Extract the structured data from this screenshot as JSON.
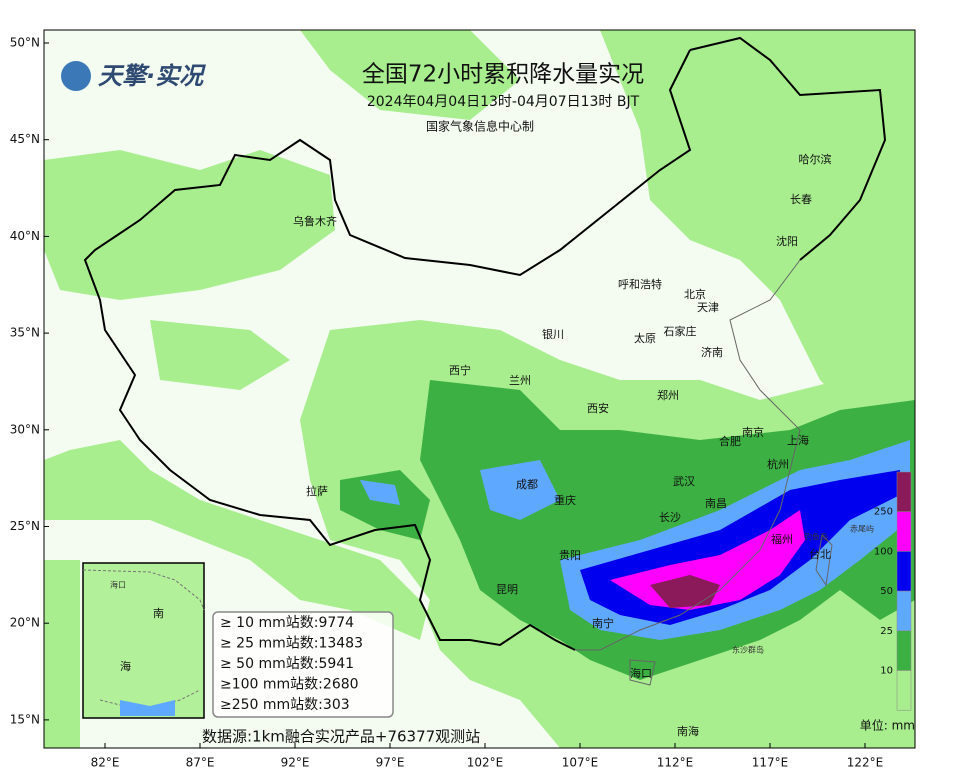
{
  "header": {
    "logo": "天擎·实况",
    "title": "全国72小时累积降水量实况",
    "subtitle": "2024年04月04日13时-04月07日13时 BJT",
    "producer": "国家气象信息中心制"
  },
  "axes": {
    "latitude": [
      "50°N",
      "45°N",
      "40°N",
      "35°N",
      "30°N",
      "25°N",
      "20°N",
      "15°N"
    ],
    "longitude": [
      "82°E",
      "87°E",
      "92°E",
      "97°E",
      "102°E",
      "107°E",
      "112°E",
      "117°E",
      "122°E"
    ]
  },
  "cities": [
    "哈尔滨",
    "长春",
    "沈阳",
    "乌鲁木齐",
    "呼和浩特",
    "北京",
    "天津",
    "银川",
    "太原",
    "石家庄",
    "济南",
    "西宁",
    "兰州",
    "郑州",
    "西安",
    "南京",
    "合肥",
    "上海",
    "拉萨",
    "成都",
    "武汉",
    "杭州",
    "重庆",
    "南昌",
    "长沙",
    "福州",
    "台北",
    "贵阳",
    "昆明",
    "南宁",
    "海口"
  ],
  "islands": [
    "赤尾屿",
    "钓鱼岛",
    "东沙群岛",
    "南海"
  ],
  "stats": {
    "rows": [
      {
        "label": "≥ 10 mm站数:",
        "count": 9774
      },
      {
        "label": "≥ 25 mm站数:",
        "count": 13483
      },
      {
        "label": "≥ 50 mm站数:",
        "count": 5941
      },
      {
        "label": "≥100 mm站数:",
        "count": 2680
      },
      {
        "label": "≥250 mm站数:",
        "count": 303
      }
    ]
  },
  "source": "数据源:1km融合实况产品+76377观测站",
  "legend": {
    "levels": [
      250,
      100,
      50,
      25,
      10
    ],
    "unit": "单位: mm"
  },
  "inset": {
    "labels": [
      "南",
      "海",
      "海口"
    ]
  }
}
